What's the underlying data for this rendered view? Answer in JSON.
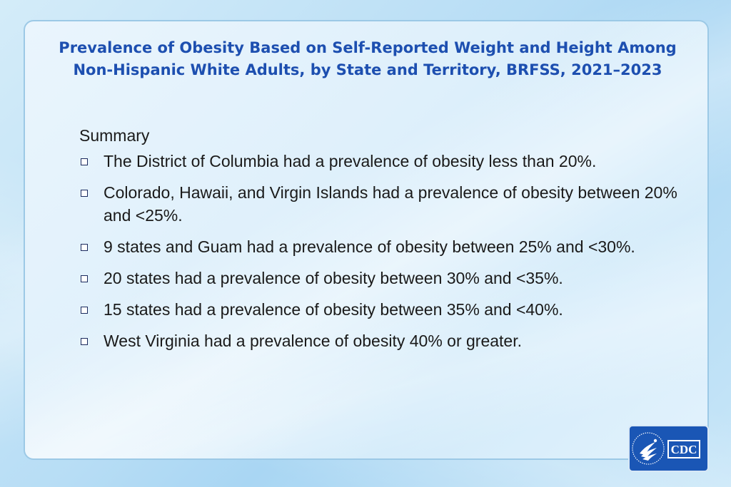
{
  "slide": {
    "title_line1": "Prevalence of Obesity Based on Self-Reported Weight and Height Among",
    "title_line2": "Non-Hispanic White Adults, by State and Territory, BRFSS, 2021–2023",
    "summary_heading": "Summary",
    "bullets": [
      "The District of Columbia had a prevalence of obesity less than 20%.",
      "Colorado, Hawaii, and Virgin Islands had a prevalence of obesity between 20% and <25%.",
      "9 states and Guam had a prevalence of obesity between 25% and <30%.",
      "20 states had a prevalence of obesity between 30% and <35%.",
      "15 states had a prevalence of obesity between 35% and <40%.",
      "West Virginia had a prevalence of obesity 40% or greater."
    ]
  },
  "logo": {
    "text": "CDC",
    "icon": "hhs-eagle-icon",
    "bg_color": "#1a56b5",
    "title_color": "#1d4fb0"
  }
}
